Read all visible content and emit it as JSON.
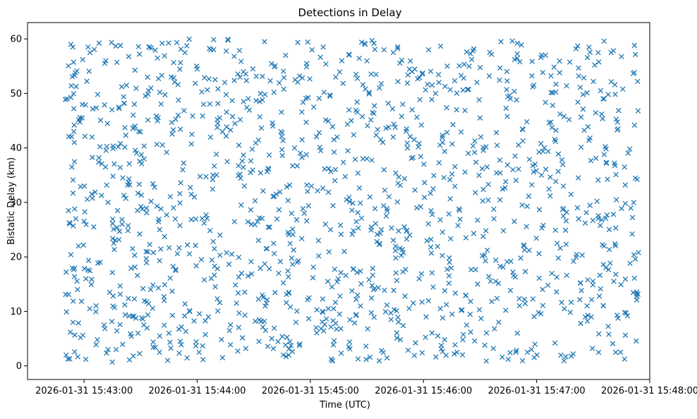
{
  "chart_data": {
    "type": "scatter",
    "title": "Detections in Delay",
    "xlabel": "Time (UTC)",
    "ylabel": "Bistatic Delay (km)",
    "x_unit": "seconds since 2026-01-31 15:42:30 UTC",
    "xlim": [
      0,
      330
    ],
    "ylim": [
      -2.5,
      63
    ],
    "x_ticks": [
      {
        "value": 30,
        "label": "2026-01-31 15:43:00"
      },
      {
        "value": 90,
        "label": "2026-01-31 15:44:00"
      },
      {
        "value": 150,
        "label": "2026-01-31 15:45:00"
      },
      {
        "value": 210,
        "label": "2026-01-31 15:46:00"
      },
      {
        "value": 270,
        "label": "2026-01-31 15:47:00"
      },
      {
        "value": 330,
        "label": "2026-01-31 15:48:00"
      }
    ],
    "y_ticks": [
      {
        "value": 0,
        "label": "0"
      },
      {
        "value": 10,
        "label": "10"
      },
      {
        "value": 20,
        "label": "20"
      },
      {
        "value": 30,
        "label": "30"
      },
      {
        "value": 40,
        "label": "40"
      },
      {
        "value": 50,
        "label": "50"
      },
      {
        "value": 60,
        "label": "60"
      }
    ],
    "marker": "x",
    "color": "#1f77b4",
    "series": [
      {
        "name": "Detections",
        "x_range": [
          20,
          324
        ],
        "y_range": [
          0.5,
          60
        ],
        "count": 1400,
        "points": [
          [
            20.5,
            17.2
          ],
          [
            21.0,
            49.0
          ],
          [
            21.8,
            13.1
          ],
          [
            22.4,
            1.3
          ],
          [
            23.0,
            59.0
          ],
          [
            23.5,
            36.5
          ],
          [
            24.1,
            8.0
          ],
          [
            24.8,
            41.0
          ],
          [
            25.6,
            27.0
          ],
          [
            26.2,
            54.1
          ],
          [
            27.0,
            22.0
          ],
          [
            28.1,
            5.2
          ],
          [
            29.0,
            45.5
          ],
          [
            30.2,
            33.0
          ],
          [
            31.0,
            16.0
          ],
          [
            32.1,
            58.5
          ],
          [
            33.0,
            10.5
          ],
          [
            34.2,
            42.0
          ],
          [
            35.1,
            25.5
          ],
          [
            36.4,
            3.9
          ],
          [
            37.2,
            49.8
          ],
          [
            38.5,
            19.0
          ],
          [
            39.4,
            37.1
          ],
          [
            40.6,
            7.5
          ],
          [
            41.5,
            56.0
          ],
          [
            42.7,
            30.0
          ],
          [
            43.6,
            13.5
          ],
          [
            44.8,
            47.0
          ],
          [
            45.7,
            22.5
          ],
          [
            47.0,
            3.0
          ],
          [
            48.1,
            40.2
          ],
          [
            49.3,
            58.8
          ],
          [
            50.2,
            26.0
          ],
          [
            51.6,
            11.2
          ],
          [
            52.5,
            51.5
          ],
          [
            53.8,
            34.3
          ],
          [
            54.9,
            17.9
          ],
          [
            56.1,
            1.8
          ],
          [
            57.0,
            44.0
          ],
          [
            58.3,
            28.5
          ],
          [
            59.4,
            57.2
          ],
          [
            60.6,
            8.8
          ],
          [
            61.8,
            38.0
          ],
          [
            62.9,
            21.0
          ],
          [
            64.2,
            50.5
          ],
          [
            65.3,
            14.0
          ],
          [
            66.5,
            33.4
          ],
          [
            67.8,
            3.4
          ],
          [
            68.9,
            45.0
          ],
          [
            70.1,
            25.0
          ],
          [
            71.4,
            59.2
          ],
          [
            72.5,
            12.0
          ],
          [
            73.8,
            39.2
          ],
          [
            75.0,
            6.0
          ],
          [
            76.2,
            53.0
          ],
          [
            77.4,
            29.0
          ],
          [
            78.6,
            17.5
          ],
          [
            79.9,
            46.0
          ],
          [
            81.0,
            4.5
          ],
          [
            82.3,
            36.0
          ],
          [
            83.5,
            57.5
          ],
          [
            84.8,
            22.2
          ],
          [
            86.0,
            10.0
          ],
          [
            87.2,
            42.5
          ],
          [
            88.5,
            31.0
          ],
          [
            89.7,
            55.0
          ],
          [
            91.0,
            2.5
          ],
          [
            92.2,
            19.5
          ],
          [
            93.4,
            48.0
          ],
          [
            94.7,
            27.7
          ],
          [
            95.9,
            9.0
          ],
          [
            97.2,
            58.0
          ],
          [
            98.4,
            35.0
          ],
          [
            99.6,
            14.5
          ],
          [
            100.9,
            44.5
          ],
          [
            102.1,
            24.0
          ],
          [
            103.4,
            1.5
          ],
          [
            104.6,
            52.0
          ],
          [
            105.9,
            37.5
          ],
          [
            107.1,
            6.5
          ],
          [
            108.3,
            20.5
          ],
          [
            109.6,
            56.8
          ],
          [
            110.8,
            11.5
          ],
          [
            112.1,
            40.5
          ],
          [
            113.3,
            29.5
          ],
          [
            114.6,
            48.5
          ],
          [
            115.8,
            3.2
          ],
          [
            117.0,
            16.5
          ],
          [
            118.3,
            35.5
          ],
          [
            119.5,
            54.5
          ],
          [
            120.8,
            8.2
          ],
          [
            122.0,
            26.5
          ],
          [
            123.2,
            45.7
          ],
          [
            124.5,
            13.0
          ],
          [
            125.7,
            59.5
          ],
          [
            127.0,
            21.5
          ],
          [
            128.2,
            38.7
          ],
          [
            129.5,
            5.0
          ],
          [
            130.7,
            50.2
          ],
          [
            131.9,
            31.5
          ],
          [
            133.2,
            17.0
          ],
          [
            134.4,
            43.0
          ],
          [
            135.7,
            2.0
          ],
          [
            136.9,
            57.0
          ],
          [
            138.2,
            24.5
          ],
          [
            139.4,
            10.8
          ],
          [
            140.6,
            36.7
          ],
          [
            141.9,
            52.5
          ],
          [
            143.1,
            19.0
          ],
          [
            144.4,
            4.0
          ],
          [
            145.6,
            41.5
          ],
          [
            146.8,
            28.0
          ],
          [
            148.1,
            55.5
          ],
          [
            149.3,
            12.5
          ],
          [
            150.6,
            33.0
          ],
          [
            151.8,
            47.5
          ],
          [
            153.1,
            7.0
          ],
          [
            154.3,
            23.0
          ],
          [
            155.5,
            39.5
          ],
          [
            156.8,
            58.5
          ],
          [
            158.0,
            26.0
          ],
          [
            159.3,
            15.5
          ],
          [
            160.5,
            49.5
          ],
          [
            161.7,
            1.0
          ],
          [
            163.0,
            34.0
          ],
          [
            164.2,
            42.0
          ],
          [
            165.5,
            9.5
          ],
          [
            166.7,
            56.0
          ],
          [
            168.0,
            21.0
          ],
          [
            169.2,
            30.5
          ],
          [
            170.4,
            3.5
          ],
          [
            171.7,
            45.0
          ],
          [
            172.9,
            17.8
          ],
          [
            174.2,
            53.5
          ],
          [
            175.4,
            25.3
          ],
          [
            176.6,
            11.0
          ],
          [
            177.9,
            38.0
          ],
          [
            179.1,
            59.0
          ],
          [
            180.4,
            6.8
          ],
          [
            181.6,
            31.0
          ],
          [
            182.9,
            46.5
          ],
          [
            184.1,
            14.2
          ],
          [
            185.3,
            22.8
          ],
          [
            186.6,
            51.0
          ],
          [
            187.8,
            2.8
          ],
          [
            189.1,
            36.0
          ],
          [
            190.3,
            27.5
          ],
          [
            191.5,
            43.8
          ],
          [
            192.8,
            8.5
          ],
          [
            194.0,
            57.5
          ],
          [
            195.3,
            19.8
          ],
          [
            196.5,
            33.5
          ],
          [
            197.8,
            4.8
          ],
          [
            199.0,
            48.0
          ],
          [
            200.2,
            12.8
          ],
          [
            201.5,
            40.0
          ],
          [
            202.7,
            24.0
          ],
          [
            204.0,
            54.0
          ],
          [
            205.2,
            1.9
          ],
          [
            206.4,
            29.0
          ],
          [
            207.7,
            16.0
          ],
          [
            208.9,
            44.2
          ],
          [
            210.2,
            37.0
          ],
          [
            211.4,
            9.0
          ],
          [
            212.7,
            58.0
          ],
          [
            213.9,
            21.8
          ],
          [
            215.1,
            32.5
          ],
          [
            216.4,
            50.0
          ],
          [
            217.6,
            5.5
          ],
          [
            218.9,
            26.8
          ],
          [
            220.1,
            41.0
          ],
          [
            221.3,
            13.8
          ],
          [
            222.6,
            55.0
          ],
          [
            223.8,
            19.0
          ],
          [
            225.1,
            35.2
          ],
          [
            226.3,
            2.2
          ],
          [
            227.6,
            47.0
          ],
          [
            228.8,
            28.8
          ],
          [
            230.0,
            10.2
          ],
          [
            231.3,
            52.8
          ],
          [
            232.5,
            23.5
          ],
          [
            233.8,
            39.0
          ],
          [
            235.0,
            6.2
          ],
          [
            236.2,
            57.8
          ],
          [
            237.5,
            31.8
          ],
          [
            238.7,
            15.0
          ],
          [
            240.0,
            45.5
          ],
          [
            241.2,
            20.2
          ],
          [
            242.5,
            3.8
          ],
          [
            243.7,
            36.5
          ],
          [
            244.9,
            53.2
          ],
          [
            246.2,
            11.8
          ],
          [
            247.4,
            27.0
          ],
          [
            248.7,
            42.8
          ],
          [
            249.9,
            8.0
          ],
          [
            251.1,
            59.5
          ],
          [
            252.4,
            24.8
          ],
          [
            253.6,
            33.8
          ],
          [
            254.9,
            1.2
          ],
          [
            256.1,
            49.0
          ],
          [
            257.4,
            17.2
          ],
          [
            258.6,
            38.5
          ],
          [
            259.8,
            6.0
          ],
          [
            261.1,
            55.8
          ],
          [
            262.3,
            29.5
          ],
          [
            263.6,
            12.2
          ],
          [
            264.8,
            44.8
          ],
          [
            266.0,
            21.2
          ],
          [
            267.3,
            3.0
          ],
          [
            268.5,
            51.5
          ],
          [
            269.8,
            35.8
          ],
          [
            271.0,
            9.8
          ],
          [
            272.3,
            40.8
          ],
          [
            273.5,
            25.8
          ],
          [
            274.7,
            57.0
          ],
          [
            276.0,
            14.8
          ],
          [
            277.2,
            31.2
          ],
          [
            278.5,
            47.8
          ],
          [
            279.7,
            4.2
          ],
          [
            280.9,
            22.5
          ],
          [
            282.2,
            53.8
          ],
          [
            283.4,
            37.8
          ],
          [
            284.7,
            10.5
          ],
          [
            285.9,
            28.2
          ],
          [
            287.2,
            45.2
          ],
          [
            288.4,
            1.8
          ],
          [
            289.6,
            19.2
          ],
          [
            290.9,
            58.2
          ],
          [
            292.1,
            34.5
          ],
          [
            293.4,
            7.8
          ],
          [
            294.6,
            49.8
          ],
          [
            295.8,
            26.2
          ],
          [
            297.1,
            15.8
          ],
          [
            298.3,
            41.8
          ],
          [
            299.6,
            3.2
          ],
          [
            300.8,
            55.2
          ],
          [
            302.1,
            30.2
          ],
          [
            303.3,
            12.8
          ],
          [
            304.5,
            46.2
          ],
          [
            305.8,
            22.0
          ],
          [
            307.0,
            37.2
          ],
          [
            308.3,
            5.8
          ],
          [
            309.5,
            57.5
          ],
          [
            310.7,
            27.8
          ],
          [
            312.0,
            16.8
          ],
          [
            313.2,
            43.5
          ],
          [
            314.5,
            2.5
          ],
          [
            315.7,
            50.8
          ],
          [
            317.0,
            33.2
          ],
          [
            318.2,
            9.2
          ],
          [
            319.4,
            39.8
          ],
          [
            320.7,
            24.2
          ],
          [
            321.9,
            58.8
          ],
          [
            323.1,
            13.2
          ],
          [
            323.8,
            46.8
          ],
          [
            324.0,
            20.8
          ]
        ]
      }
    ]
  }
}
